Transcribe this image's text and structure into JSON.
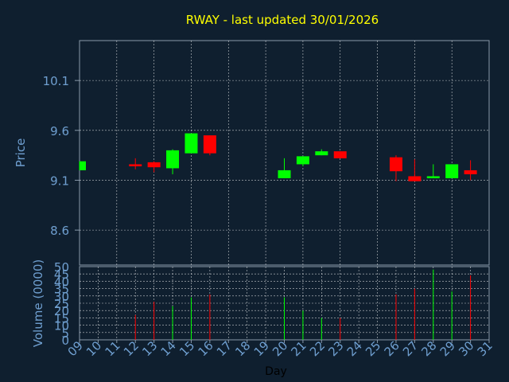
{
  "title": "RWAY - last updated 30/01/2026",
  "colors": {
    "background": "#0f1f2f",
    "frame": "#8899aa",
    "grid": "#ffffff",
    "title": "#ffff00",
    "axis_text": "#6f9fd0",
    "xlabel_text": "#000000",
    "up": "#00ff00",
    "down": "#ff0000"
  },
  "chart_data": [
    {
      "type": "candlestick",
      "ylabel": "Price",
      "ylim": [
        8.25,
        10.5
      ],
      "y_ticks": [
        "8.6",
        "9.1",
        "9.6",
        "10.1"
      ],
      "grid": true,
      "candles": [
        {
          "day": 9,
          "open": 9.2,
          "close": 9.29,
          "high": 9.29,
          "low": 9.2
        },
        {
          "day": 12,
          "open": 9.26,
          "close": 9.24,
          "high": 9.32,
          "low": 9.21
        },
        {
          "day": 13,
          "open": 9.28,
          "close": 9.23,
          "high": 9.29,
          "low": 9.18
        },
        {
          "day": 14,
          "open": 9.22,
          "close": 9.4,
          "high": 9.41,
          "low": 9.16
        },
        {
          "day": 15,
          "open": 9.37,
          "close": 9.57,
          "high": 9.57,
          "low": 9.37
        },
        {
          "day": 16,
          "open": 9.55,
          "close": 9.37,
          "high": 9.55,
          "low": 9.35
        },
        {
          "day": 20,
          "open": 9.12,
          "close": 9.2,
          "high": 9.32,
          "low": 9.12
        },
        {
          "day": 21,
          "open": 9.26,
          "close": 9.34,
          "high": 9.34,
          "low": 9.24
        },
        {
          "day": 22,
          "open": 9.35,
          "close": 9.39,
          "high": 9.41,
          "low": 9.35
        },
        {
          "day": 23,
          "open": 9.39,
          "close": 9.32,
          "high": 9.39,
          "low": 9.32
        },
        {
          "day": 26,
          "open": 9.33,
          "close": 9.19,
          "high": 9.35,
          "low": 9.09
        },
        {
          "day": 27,
          "open": 9.14,
          "close": 9.09,
          "high": 9.31,
          "low": 9.09
        },
        {
          "day": 28,
          "open": 9.12,
          "close": 9.14,
          "high": 9.26,
          "low": 9.12
        },
        {
          "day": 29,
          "open": 9.12,
          "close": 9.26,
          "high": 9.26,
          "low": 9.12
        },
        {
          "day": 30,
          "open": 9.2,
          "close": 9.16,
          "high": 9.3,
          "low": 9.1
        }
      ]
    },
    {
      "type": "bar",
      "ylabel": "Volume (0000)",
      "xlabel": "Day",
      "ylim": [
        0,
        50
      ],
      "y_ticks": [
        "0",
        "5",
        "10",
        "15",
        "20",
        "25",
        "30",
        "35",
        "40",
        "45",
        "50"
      ],
      "x_ticks": [
        "09",
        "10",
        "11",
        "12",
        "13",
        "14",
        "15",
        "16",
        "17",
        "18",
        "19",
        "20",
        "21",
        "22",
        "23",
        "24",
        "25",
        "26",
        "27",
        "28",
        "29",
        "30",
        "31"
      ],
      "grid": true,
      "bars": [
        {
          "day": 9,
          "value": 0,
          "dir": "up"
        },
        {
          "day": 12,
          "value": 17,
          "dir": "down"
        },
        {
          "day": 13,
          "value": 26,
          "dir": "down"
        },
        {
          "day": 14,
          "value": 23,
          "dir": "up"
        },
        {
          "day": 15,
          "value": 29,
          "dir": "up"
        },
        {
          "day": 16,
          "value": 31,
          "dir": "down"
        },
        {
          "day": 20,
          "value": 29,
          "dir": "up"
        },
        {
          "day": 21,
          "value": 20,
          "dir": "up"
        },
        {
          "day": 22,
          "value": 15,
          "dir": "up"
        },
        {
          "day": 23,
          "value": 15,
          "dir": "down"
        },
        {
          "day": 26,
          "value": 31,
          "dir": "down"
        },
        {
          "day": 27,
          "value": 35,
          "dir": "down"
        },
        {
          "day": 28,
          "value": 48,
          "dir": "up"
        },
        {
          "day": 29,
          "value": 33,
          "dir": "up"
        },
        {
          "day": 30,
          "value": 44,
          "dir": "down"
        }
      ]
    }
  ]
}
